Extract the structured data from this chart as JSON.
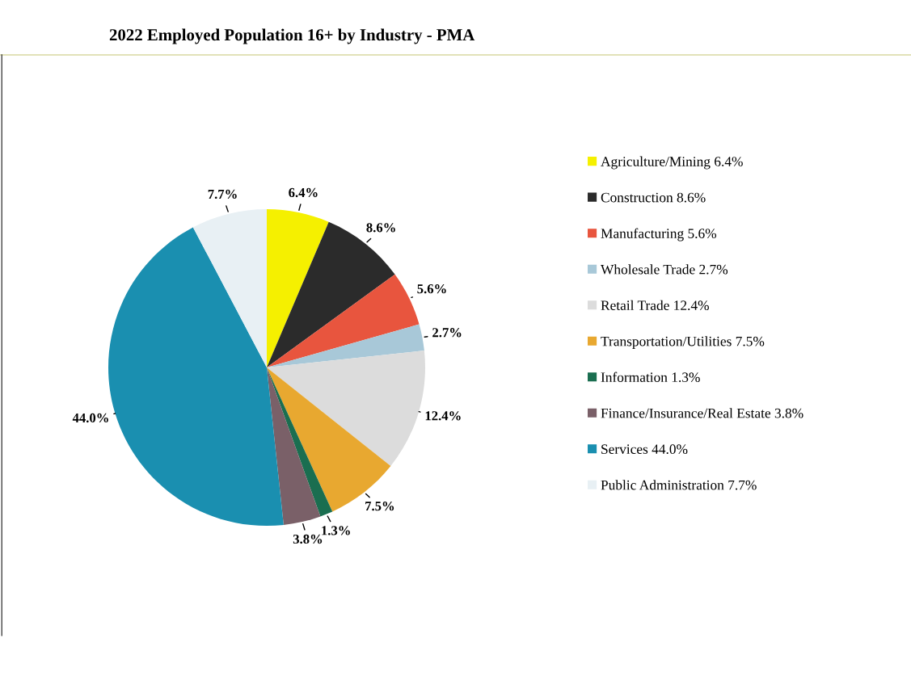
{
  "chart_data": {
    "type": "pie",
    "title": "2022 Employed Population 16+ by Industry - PMA",
    "categories": [
      "Agriculture/Mining 6.4%",
      "Construction 8.6%",
      "Manufacturing 5.6%",
      "Wholesale Trade 2.7%",
      "Retail Trade 12.4%",
      "Transportation/Utilities 7.5%",
      "Information 1.3%",
      "Finance/Insurance/Real Estate 3.8%",
      "Services 44.0%",
      "Public Administration 7.7%"
    ],
    "values": [
      6.4,
      8.6,
      5.6,
      2.7,
      12.4,
      7.5,
      1.3,
      3.8,
      44.0,
      7.7
    ],
    "value_labels": [
      "6.4%",
      "8.6%",
      "5.6%",
      "2.7%",
      "12.4%",
      "7.5%",
      "1.3%",
      "3.8%",
      "44.0%",
      "7.7%"
    ],
    "colors": [
      "#f5f000",
      "#2b2b2b",
      "#e8553e",
      "#a8c8d8",
      "#dcdcdc",
      "#e8a830",
      "#1a6e50",
      "#7a6068",
      "#1a8fb0",
      "#e8f0f4"
    ],
    "legend": "right"
  }
}
